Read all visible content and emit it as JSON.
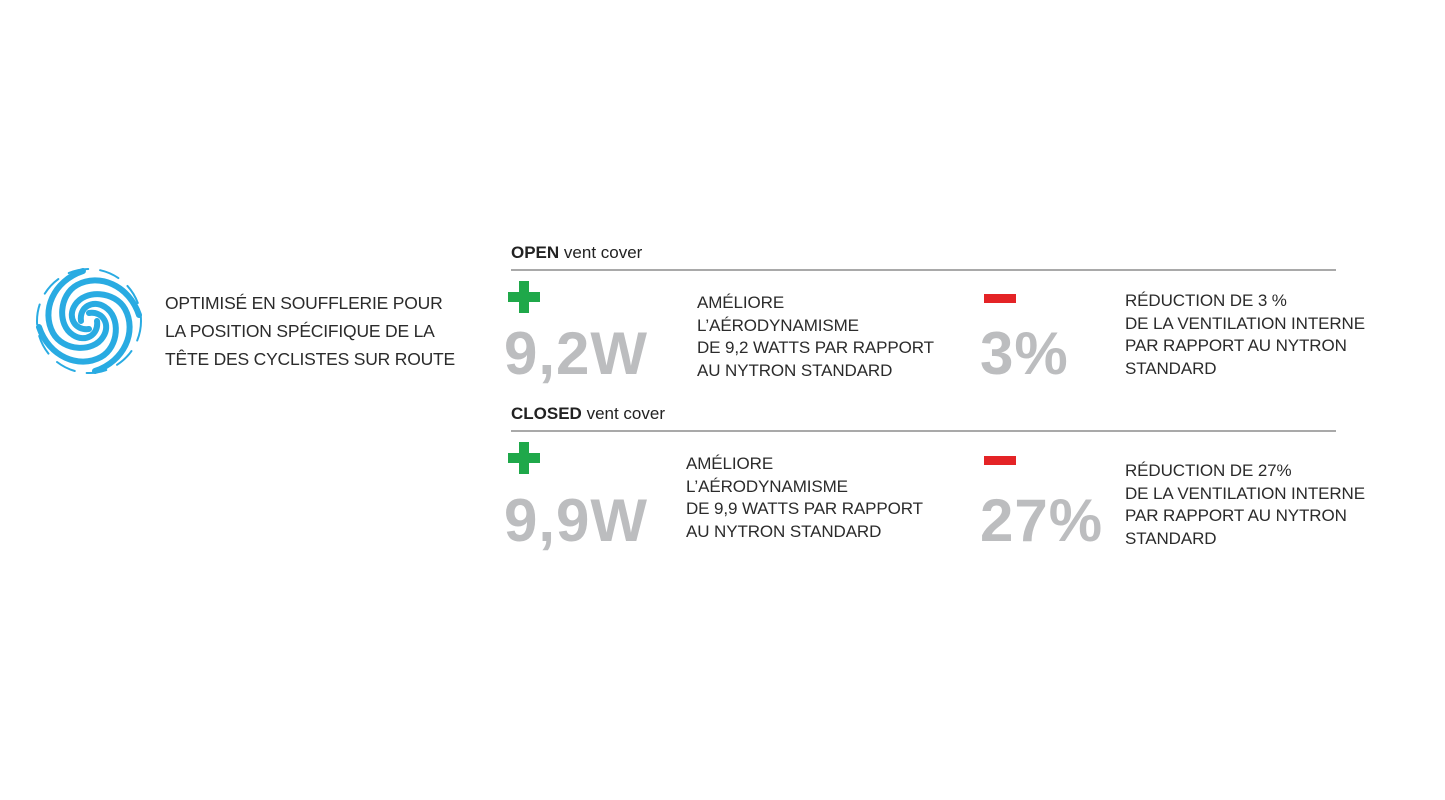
{
  "intro": {
    "icon": "wind-swirl-icon",
    "icon_color": "#29abe2",
    "text": "OPTIMISÉ EN SOUFFLERIE POUR\nLA POSITION SPÉCIFIQUE DE LA\nTÊTE DES CYCLISTES SUR ROUTE"
  },
  "sections": [
    {
      "title_bold": "OPEN",
      "title_rest": " vent cover",
      "gain": {
        "icon": "plus-icon",
        "color": "#1fa84a",
        "value": "9,2W",
        "text": "AMÉLIORE\nL’AÉRODYNAMISME\nDE 9,2 WATTS PAR RAPPORT\nAU NYTRON STANDARD"
      },
      "loss": {
        "icon": "minus-icon",
        "color": "#e42326",
        "value": "3%",
        "text": "RÉDUCTION DE 3 %\nDE LA VENTILATION INTERNE\nPAR RAPPORT AU NYTRON\nSTANDARD"
      }
    },
    {
      "title_bold": "CLOSED",
      "title_rest": " vent cover",
      "gain": {
        "icon": "plus-icon",
        "color": "#1fa84a",
        "value": "9,9W",
        "text": "AMÉLIORE\nL’AÉRODYNAMISME\nDE 9,9 WATTS PAR RAPPORT\nAU NYTRON STANDARD"
      },
      "loss": {
        "icon": "minus-icon",
        "color": "#e42326",
        "value": "27%",
        "text": "RÉDUCTION DE 27%\nDE LA VENTILATION INTERNE\nPAR RAPPORT AU NYTRON\nSTANDARD"
      }
    }
  ]
}
